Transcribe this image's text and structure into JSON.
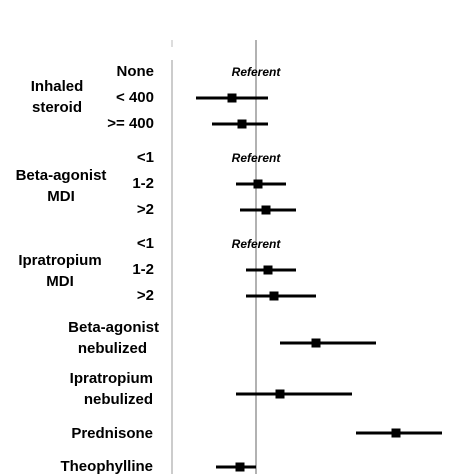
{
  "chart_data": {
    "type": "forest",
    "title": "",
    "xlabel": "",
    "reference_value": 1.0,
    "rows": [
      {
        "group": "Inhaled steroid",
        "group_lines": [
          "Inhaled",
          "steroid"
        ],
        "level": "None",
        "referent_label": "Referent"
      },
      {
        "group": "Inhaled steroid",
        "level": "< 400",
        "estimate": 0.88,
        "lower": 0.7,
        "upper": 1.06
      },
      {
        "group": "Inhaled steroid",
        "level": ">= 400",
        "estimate": 0.93,
        "lower": 0.78,
        "upper": 1.06
      },
      {
        "group": "Beta-agonist MDI",
        "group_lines": [
          "Beta-agonist",
          "MDI"
        ],
        "level": "<1",
        "referent_label": "Referent"
      },
      {
        "group": "Beta-agonist MDI",
        "level": "1-2",
        "estimate": 1.01,
        "lower": 0.9,
        "upper": 1.15
      },
      {
        "group": "Beta-agonist MDI",
        "level": ">2",
        "estimate": 1.05,
        "lower": 0.92,
        "upper": 1.2
      },
      {
        "group": "Ipratropium MDI",
        "group_lines": [
          "Ipratropium",
          "MDI"
        ],
        "level": "<1",
        "referent_label": "Referent"
      },
      {
        "group": "Ipratropium MDI",
        "level": "1-2",
        "estimate": 1.06,
        "lower": 0.95,
        "upper": 1.2
      },
      {
        "group": "Ipratropium MDI",
        "level": ">2",
        "estimate": 1.09,
        "lower": 0.95,
        "upper": 1.3
      },
      {
        "group": "Beta-agonist nebulized",
        "group_lines": [
          "Beta-agonist",
          "nebulized"
        ],
        "level": "",
        "estimate": 1.3,
        "lower": 1.12,
        "upper": 1.6
      },
      {
        "group": "Ipratropium nebulized",
        "group_lines": [
          "Ipratropium",
          "nebulized"
        ],
        "level": "",
        "estimate": 1.12,
        "lower": 0.9,
        "upper": 1.48
      },
      {
        "group": "Prednisone",
        "group_lines": [
          "Prednisone"
        ],
        "level": "",
        "estimate": 1.7,
        "lower": 1.5,
        "upper": 1.93
      },
      {
        "group": "Theophylline",
        "group_lines": [
          "Theophylline"
        ],
        "level": "",
        "estimate": 0.92,
        "lower": 0.8,
        "upper": 1.0
      }
    ]
  }
}
